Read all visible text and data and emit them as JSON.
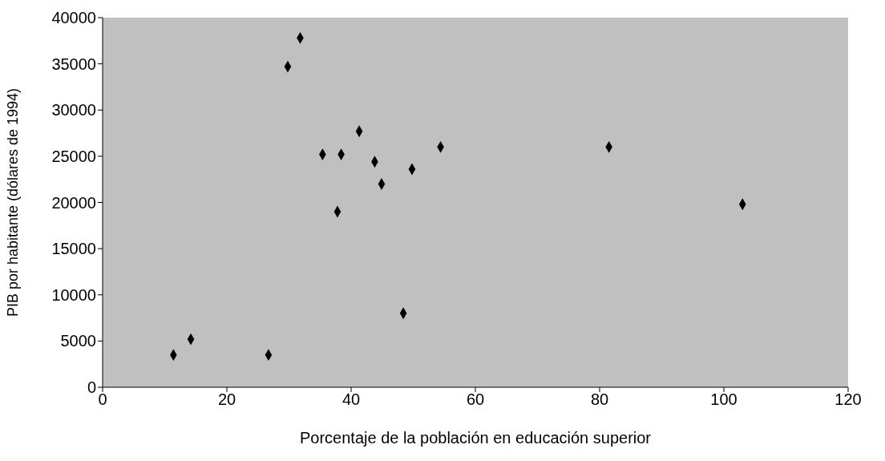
{
  "chart_data": {
    "type": "scatter",
    "xlabel": "Porcentaje de la población en educación superior",
    "ylabel": "PIB por habitante (dólares de 1994)",
    "x": [
      11.4,
      14.2,
      26.7,
      29.8,
      31.8,
      35.4,
      38.4,
      41.3,
      37.8,
      43.8,
      44.9,
      48.4,
      49.8,
      54.4,
      81.5,
      103.0
    ],
    "series": [
      {
        "color": "#000000",
        "values": [
          3500,
          5200,
          3500,
          34700,
          37800,
          25200,
          25200,
          27700,
          19000,
          24400,
          22000,
          8000,
          23600,
          26000,
          26000,
          19800
        ]
      }
    ],
    "xlim": [
      0,
      120
    ],
    "xticks": [
      0,
      20,
      40,
      60,
      80,
      100,
      120
    ],
    "ylim": [
      0,
      40000
    ],
    "yticks": [
      0,
      5000,
      10000,
      15000,
      20000,
      25000,
      30000,
      35000,
      40000
    ],
    "marker": "diamond",
    "grid": false,
    "legend": false
  }
}
